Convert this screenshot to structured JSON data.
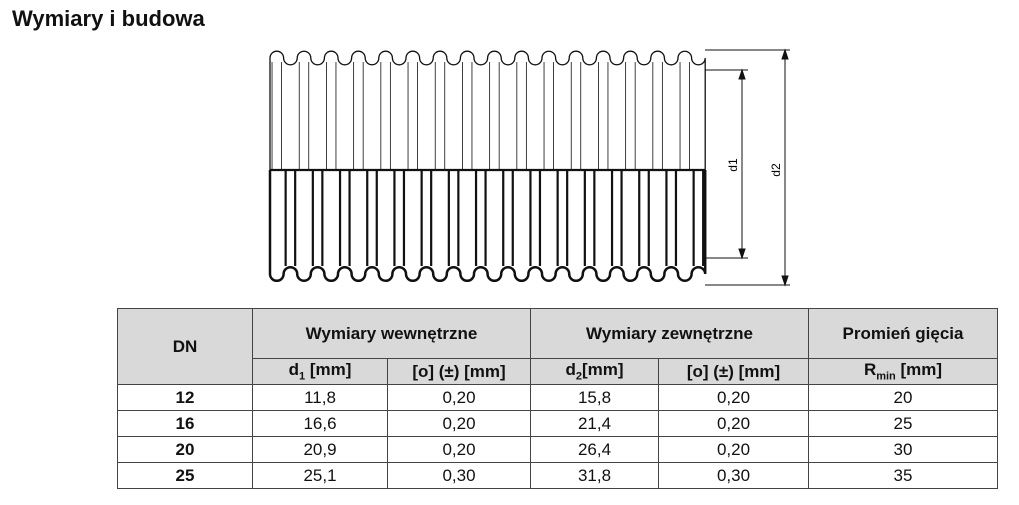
{
  "title": "Wymiary i budowa",
  "diagram": {
    "label_d1": "d1",
    "label_d2": "d2"
  },
  "table": {
    "header": {
      "dn": "DN",
      "groups": [
        "Wymiary wewnętrzne",
        "Wymiary zewnętrzne",
        "Promień gięcia"
      ]
    },
    "subheader": [
      {
        "main": "d",
        "sub": "1",
        "unit": " [mm]"
      },
      {
        "main": "[o] (±) [mm]"
      },
      {
        "main": "d",
        "sub": "2",
        "unit": "[mm]"
      },
      {
        "main": "[o] (±) [mm]"
      },
      {
        "main": "R",
        "sub": "min",
        "unit": " [mm]"
      }
    ],
    "rows": [
      [
        "12",
        "11,8",
        "0,20",
        "15,8",
        "0,20",
        "20"
      ],
      [
        "16",
        "16,6",
        "0,20",
        "21,4",
        "0,20",
        "25"
      ],
      [
        "20",
        "20,9",
        "0,20",
        "26,4",
        "0,20",
        "30"
      ],
      [
        "25",
        "25,1",
        "0,30",
        "31,8",
        "0,30",
        "35"
      ]
    ]
  }
}
